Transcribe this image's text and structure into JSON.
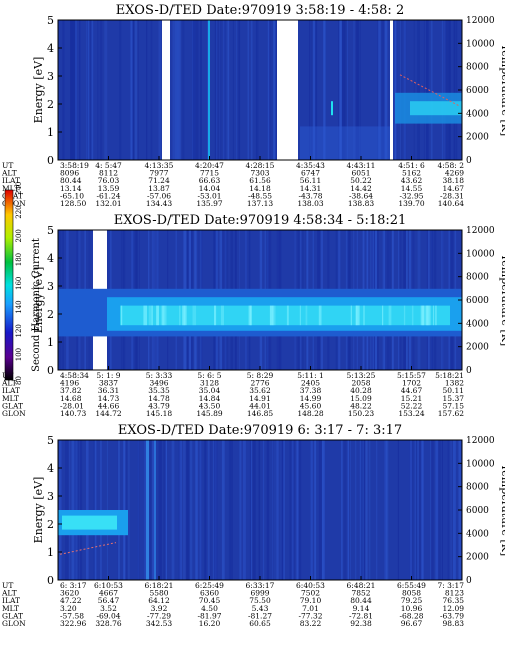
{
  "colorbar": {
    "label": "Second Harmonic Current",
    "ticks": [
      "80",
      "100",
      "120",
      "140",
      "160",
      "180",
      "200",
      "220",
      "240"
    ]
  },
  "row_labels": [
    "UT",
    "ALT",
    "ILAT",
    "MLT",
    "GLAT",
    "GLON"
  ],
  "chart_data": [
    {
      "type": "heatmap",
      "title": "EXOS-D/TED   Date:970919   3:58:19 - 4:58: 2",
      "ylabel": "Energy [eV]",
      "y2label": "Temperature [K]",
      "ylim": [
        0,
        5
      ],
      "y2lim": [
        0,
        12000
      ],
      "yticks": [
        "0",
        "1",
        "2",
        "3",
        "4",
        "5"
      ],
      "y2ticks": [
        "0",
        "2000",
        "4000",
        "6000",
        "8000",
        "10000",
        "12000"
      ],
      "xticks": [
        {
          "UT": "3:58:19",
          "ALT": "8096",
          "ILAT": "80.44",
          "MLT": "13.14",
          "GLAT": "-65.10",
          "GLON": "128.50"
        },
        {
          "UT": "4: 5:47",
          "ALT": "8112",
          "ILAT": "76.03",
          "MLT": "13.59",
          "GLAT": "-61.24",
          "GLON": "132.01"
        },
        {
          "UT": "4:13:35",
          "ALT": "7977",
          "ILAT": "71.24",
          "MLT": "13.87",
          "GLAT": "-57.06",
          "GLON": "134.43"
        },
        {
          "UT": "4:20:47",
          "ALT": "7715",
          "ILAT": "66.63",
          "MLT": "14.04",
          "GLAT": "-53.01",
          "GLON": "135.97"
        },
        {
          "UT": "4:28:15",
          "ALT": "7303",
          "ILAT": "61.56",
          "MLT": "14.18",
          "GLAT": "-48.55",
          "GLON": "137.13"
        },
        {
          "UT": "4:35:43",
          "ALT": "6747",
          "ILAT": "56.11",
          "MLT": "14.31",
          "GLAT": "-43.78",
          "GLON": "138.03"
        },
        {
          "UT": "4:43:11",
          "ALT": "6051",
          "ILAT": "50.22",
          "MLT": "14.42",
          "GLAT": "-38.64",
          "GLON": "138.83"
        },
        {
          "UT": "4:51: 6",
          "ALT": "5162",
          "ILAT": "43.62",
          "MLT": "14.55",
          "GLAT": "-32.95",
          "GLON": "139.70"
        },
        {
          "UT": "4:58: 2",
          "ALT": "4269",
          "ILAT": "38.18",
          "MLT": "14.67",
          "GLAT": "-28.31",
          "GLON": "140.64"
        }
      ]
    },
    {
      "type": "heatmap",
      "title": "EXOS-D/TED   Date:970919   4:58:34 - 5:18:21",
      "ylabel": "Energy [eV]",
      "y2label": "Temperature [K]",
      "ylim": [
        0,
        5
      ],
      "y2lim": [
        0,
        12000
      ],
      "yticks": [
        "0",
        "1",
        "2",
        "3",
        "4",
        "5"
      ],
      "y2ticks": [
        "0",
        "2000",
        "4000",
        "6000",
        "8000",
        "10000",
        "12000"
      ],
      "xticks": [
        {
          "UT": "4:58:34",
          "ALT": "4196",
          "ILAT": "37.82",
          "MLT": "14.68",
          "GLAT": "-28.01",
          "GLON": "140.73"
        },
        {
          "UT": "5: 1: 9",
          "ALT": "3837",
          "ILAT": "36.31",
          "MLT": "14.73",
          "GLAT": "44.66",
          "GLON": "144.72"
        },
        {
          "UT": "5: 3:33",
          "ALT": "3496",
          "ILAT": "35.35",
          "MLT": "14.78",
          "GLAT": "43.79",
          "GLON": "145.18"
        },
        {
          "UT": "5: 6: 5",
          "ALT": "3128",
          "ILAT": "35.04",
          "MLT": "14.84",
          "GLAT": "43.50",
          "GLON": "145.89"
        },
        {
          "UT": "5: 8:29",
          "ALT": "2776",
          "ILAT": "35.62",
          "MLT": "14.91",
          "GLAT": "44.01",
          "GLON": "146.85"
        },
        {
          "UT": "5:11: 1",
          "ALT": "2405",
          "ILAT": "37.38",
          "MLT": "14.99",
          "GLAT": "45.60",
          "GLON": "148.28"
        },
        {
          "UT": "5:13:25",
          "ALT": "2058",
          "ILAT": "40.28",
          "MLT": "15.09",
          "GLAT": "48.22",
          "GLON": "150.23"
        },
        {
          "UT": "5:15:57",
          "ALT": "1702",
          "ILAT": "44.67",
          "MLT": "15.21",
          "GLAT": "52.22",
          "GLON": "153.24"
        },
        {
          "UT": "5:18:21",
          "ALT": "1382",
          "ILAT": "50.11",
          "MLT": "15.37",
          "GLAT": "57.15",
          "GLON": "157.62"
        }
      ]
    },
    {
      "type": "heatmap",
      "title": "EXOS-D/TED   Date:970919   6: 3:17 - 7: 3:17",
      "ylabel": "Energy [eV]",
      "y2label": "Temperature [K]",
      "ylim": [
        0,
        5
      ],
      "y2lim": [
        0,
        12000
      ],
      "yticks": [
        "0",
        "1",
        "2",
        "3",
        "4",
        "5"
      ],
      "y2ticks": [
        "0",
        "2000",
        "4000",
        "6000",
        "8000",
        "10000",
        "12000"
      ],
      "xticks": [
        {
          "UT": "6: 3:17",
          "ALT": "3620",
          "ILAT": "47.22",
          "MLT": "3.20",
          "GLAT": "-57.58",
          "GLON": "322.96"
        },
        {
          "UT": "6:10:53",
          "ALT": "4667",
          "ILAT": "56.47",
          "MLT": "3.52",
          "GLAT": "-69.04",
          "GLON": "328.76"
        },
        {
          "UT": "6:18:21",
          "ALT": "5580",
          "ILAT": "64.12",
          "MLT": "3.92",
          "GLAT": "-77.29",
          "GLON": "342.53"
        },
        {
          "UT": "6:25:49",
          "ALT": "6360",
          "ILAT": "70.45",
          "MLT": "4.50",
          "GLAT": "-81.97",
          "GLON": "16.20"
        },
        {
          "UT": "6:33:17",
          "ALT": "6999",
          "ILAT": "75.50",
          "MLT": "5.43",
          "GLAT": "-81.27",
          "GLON": "60.65"
        },
        {
          "UT": "6:40:53",
          "ALT": "7502",
          "ILAT": "79.10",
          "MLT": "7.01",
          "GLAT": "-77.32",
          "GLON": "83.22"
        },
        {
          "UT": "6:48:21",
          "ALT": "7852",
          "ILAT": "80.44",
          "MLT": "9.14",
          "GLAT": "-72.81",
          "GLON": "92.38"
        },
        {
          "UT": "6:55:49",
          "ALT": "8058",
          "ILAT": "79.25",
          "MLT": "10.96",
          "GLAT": "-68.28",
          "GLON": "96.67"
        },
        {
          "UT": "7: 3:17",
          "ALT": "8123",
          "ILAT": "76.35",
          "MLT": "12.09",
          "GLAT": "-63.79",
          "GLON": "98.83"
        }
      ]
    }
  ]
}
